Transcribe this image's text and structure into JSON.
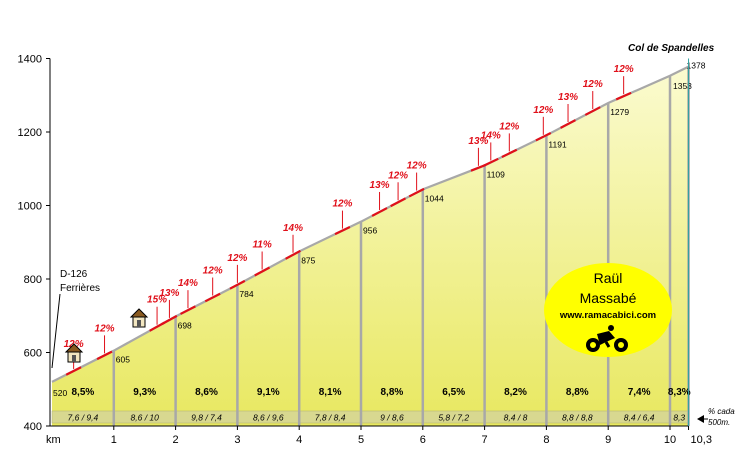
{
  "chart_data": {
    "type": "area",
    "title": "Col de Spandelles",
    "start_label": [
      "D-126",
      "Ferrières"
    ],
    "xlabel": "km",
    "x_ticks": [
      "1",
      "2",
      "3",
      "4",
      "5",
      "6",
      "7",
      "8",
      "9",
      "10",
      "10,3"
    ],
    "y_ticks": [
      400,
      600,
      800,
      1000,
      1200,
      1400
    ],
    "xlim": [
      0,
      10.3
    ],
    "ylim": [
      400,
      1400
    ],
    "grid": false,
    "km_marks": [
      0,
      1,
      2,
      3,
      4,
      5,
      6,
      7,
      8,
      9,
      10,
      10.3
    ],
    "altitudes": [
      520,
      605,
      698,
      784,
      875,
      956,
      1044,
      1109,
      1191,
      1279,
      1353,
      1378
    ],
    "altitude_labels": [
      "520",
      "605",
      "698",
      "784",
      "875",
      "956",
      "1044",
      "1109",
      "1191",
      "1279",
      "1353",
      "1378"
    ],
    "km_gradients": [
      "8,5%",
      "9,3%",
      "8,6%",
      "9,1%",
      "8,1%",
      "8,8%",
      "6,5%",
      "8,2%",
      "8,8%",
      "7,4%",
      "8,3%"
    ],
    "half_km_gradients": [
      "7,6 / 9,4",
      "8,6 / 10",
      "9,8 / 7,4",
      "8,6 / 9,6",
      "7,8 / 8,4",
      "9 / 8,6",
      "5,8 / 7,2",
      "8,4 / 8",
      "8,8 / 8,8",
      "8,4 / 6,4",
      "8,3"
    ],
    "steep_sections": [
      {
        "x": 0.35,
        "label": "12%"
      },
      {
        "x": 0.85,
        "label": "12%"
      },
      {
        "x": 1.7,
        "label": "15%"
      },
      {
        "x": 1.9,
        "label": "13%"
      },
      {
        "x": 2.2,
        "label": "14%"
      },
      {
        "x": 2.6,
        "label": "12%"
      },
      {
        "x": 3.0,
        "label": "12%"
      },
      {
        "x": 3.4,
        "label": "11%"
      },
      {
        "x": 3.9,
        "label": "14%"
      },
      {
        "x": 4.7,
        "label": "12%"
      },
      {
        "x": 5.3,
        "label": "13%"
      },
      {
        "x": 5.6,
        "label": "12%"
      },
      {
        "x": 5.9,
        "label": "12%"
      },
      {
        "x": 6.9,
        "label": "13%"
      },
      {
        "x": 7.1,
        "label": "14%"
      },
      {
        "x": 7.4,
        "label": "12%"
      },
      {
        "x": 7.95,
        "label": "12%"
      },
      {
        "x": 8.35,
        "label": "13%"
      },
      {
        "x": 8.75,
        "label": "12%"
      },
      {
        "x": 9.25,
        "label": "12%"
      }
    ],
    "note": [
      "% cada",
      "500m."
    ],
    "colors": {
      "fill": "#f0f08c",
      "profile": "#a8a8a8",
      "steep": "#e0101a",
      "stripe": "#d8d890"
    }
  },
  "badge": {
    "line1": "Raül",
    "line2": "Massabé",
    "url": "www.ramacabici.com",
    "bg_color": "#ffff00",
    "icon": "cyclist-icon"
  },
  "icons": [
    "house-icon",
    "house-icon"
  ]
}
